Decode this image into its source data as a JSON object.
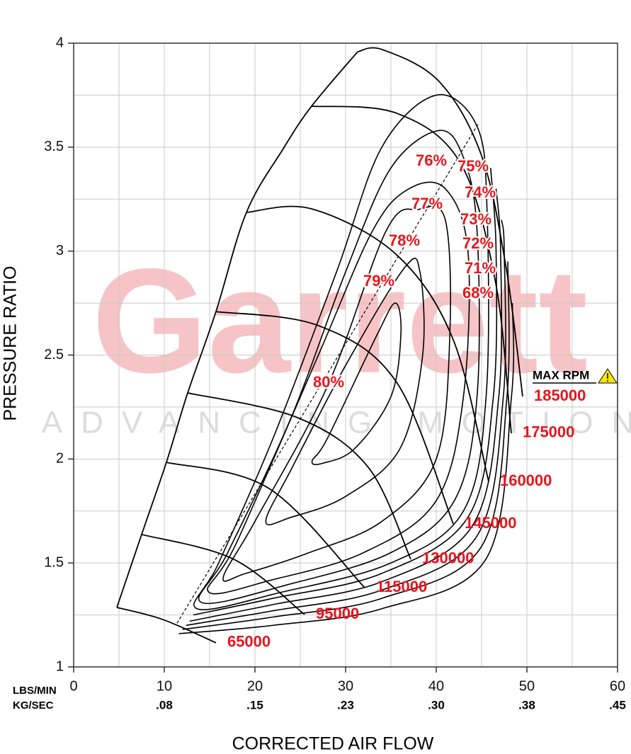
{
  "chart_data": {
    "type": "compressor_map",
    "x_label": "CORRECTED AIR FLOW",
    "y_label": "PRESSURE RATIO",
    "x_units_label": "LBS/MIN",
    "x2_units_label": "KG/SEC",
    "xlim": [
      0,
      60
    ],
    "ylim": [
      1,
      4
    ],
    "xticks": [
      0,
      10,
      20,
      30,
      40,
      50,
      60
    ],
    "x2ticks": [
      {
        "value": 10,
        "label": ".08"
      },
      {
        "value": 20,
        "label": ".15"
      },
      {
        "value": 30,
        "label": ".23"
      },
      {
        "value": 40,
        "label": ".30"
      },
      {
        "value": 50,
        "label": ".38"
      },
      {
        "value": 60,
        "label": ".45"
      }
    ],
    "yticks": [
      1,
      1.5,
      2,
      2.5,
      3,
      3.5,
      4
    ],
    "xgrid": [
      0,
      5,
      10,
      15,
      20,
      25,
      30,
      35,
      40,
      45,
      50,
      55,
      60
    ],
    "ygrid": [
      1,
      1.25,
      1.5,
      1.75,
      2,
      2.25,
      2.5,
      2.75,
      3,
      3.25,
      3.5,
      3.75,
      4
    ],
    "label_color": "#e8141b",
    "line_color": "#000000",
    "speed_lines": [
      {
        "name": "65000",
        "x": [
          4.77,
          9.84,
          15.7
        ],
        "y": [
          1.286,
          1.228,
          1.116
        ]
      },
      {
        "name": "95000",
        "x": [
          7.5,
          17.66,
          25.47
        ],
        "y": [
          1.637,
          1.518,
          1.252
        ]
      },
      {
        "name": "115000",
        "x": [
          10.23,
          21.56,
          32.11
        ],
        "y": [
          1.984,
          1.858,
          1.381
        ]
      },
      {
        "name": "130000",
        "x": [
          12.58,
          24.69,
          32.5,
          37.19
        ],
        "y": [
          2.318,
          2.199,
          1.96,
          1.518
        ]
      },
      {
        "name": "145000",
        "x": [
          15.7,
          27.03,
          35.63,
          41.88
        ],
        "y": [
          2.709,
          2.641,
          2.369,
          1.688
        ]
      },
      {
        "name": "160000",
        "x": [
          19.06,
          26.25,
          35.63,
          41.88,
          45.78
        ],
        "y": [
          3.186,
          3.203,
          2.982,
          2.573,
          1.892
        ]
      },
      {
        "name": "175000",
        "x": [
          26.25,
          35.63,
          42.66,
          46.56,
          48.28
        ],
        "y": [
          3.697,
          3.663,
          3.424,
          2.846,
          2.124
        ]
      },
      {
        "name": "185000",
        "x": [
          31.33,
          34.06,
          40.31,
          45.0,
          47.73,
          49.53
        ],
        "y": [
          3.959,
          3.969,
          3.816,
          3.459,
          2.914,
          2.301
        ]
      }
    ],
    "efficiency_islands": [
      {
        "name": "80%",
        "closed": true,
        "x": [
          26.3,
          28,
          33.5,
          35.5,
          36.1,
          35,
          31,
          27.5
        ],
        "y": [
          1.99,
          2.1,
          2.6,
          2.75,
          2.6,
          2.3,
          2.05,
          1.98
        ]
      },
      {
        "name": "79%",
        "closed": true,
        "x": [
          21.2,
          24,
          30,
          36.5,
          38.2,
          38.5,
          36,
          30,
          24
        ],
        "y": [
          1.7,
          1.95,
          2.45,
          2.92,
          2.9,
          2.5,
          2.05,
          1.82,
          1.72
        ]
      },
      {
        "name": "78%",
        "closed": true,
        "x": [
          16.5,
          20,
          28,
          34.5,
          38,
          41,
          41.5,
          40,
          34,
          26,
          19
        ],
        "y": [
          1.43,
          1.7,
          2.35,
          3.1,
          3.2,
          3.15,
          2.6,
          2.0,
          1.7,
          1.55,
          1.45
        ]
      },
      {
        "name": "77%",
        "closed": true,
        "x": [
          14.9,
          18,
          27,
          33,
          37,
          41,
          43.5,
          43,
          40,
          32,
          22
        ],
        "y": [
          1.36,
          1.6,
          2.5,
          3.1,
          3.3,
          3.3,
          3.0,
          2.3,
          1.8,
          1.55,
          1.42
        ]
      },
      {
        "name": "76%",
        "closed": true,
        "x": [
          14.1,
          17,
          24,
          30,
          35,
          40.3,
          43,
          44.5,
          44.5,
          42,
          35,
          24
        ],
        "y": [
          1.31,
          1.55,
          2.2,
          2.9,
          3.4,
          3.58,
          3.45,
          3.1,
          2.3,
          1.8,
          1.55,
          1.4
        ]
      },
      {
        "name": "75%",
        "closed": true,
        "x": [
          13.6,
          16,
          22,
          29,
          34,
          40,
          44.5,
          45.6,
          45.5,
          43,
          35,
          23
        ],
        "y": [
          1.28,
          1.5,
          2.1,
          2.9,
          3.5,
          3.75,
          3.6,
          3.2,
          2.3,
          1.75,
          1.5,
          1.36
        ]
      },
      {
        "name": "74%",
        "closed": false,
        "x": [
          13.2,
          22,
          34,
          43.5,
          46.3,
          46.6,
          46
        ],
        "y": [
          1.25,
          1.33,
          1.45,
          1.72,
          2.3,
          3.0,
          3.4
        ]
      },
      {
        "name": "73%",
        "closed": false,
        "x": [
          12.8,
          22,
          34,
          44,
          46.9,
          47.1,
          46.6
        ],
        "y": [
          1.22,
          1.3,
          1.41,
          1.68,
          2.3,
          3.0,
          3.3
        ]
      },
      {
        "name": "72%",
        "closed": false,
        "x": [
          12.4,
          22,
          34,
          44.5,
          47.4,
          47.5,
          47.2
        ],
        "y": [
          1.2,
          1.27,
          1.37,
          1.63,
          2.3,
          3.0,
          3.15
        ]
      },
      {
        "name": "71%",
        "closed": false,
        "x": [
          12.0,
          22,
          34,
          45,
          47.8,
          47.9
        ],
        "y": [
          1.18,
          1.24,
          1.33,
          1.58,
          2.3,
          2.95
        ]
      },
      {
        "name": "68%",
        "closed": false,
        "x": [
          11.6,
          22,
          34,
          45.5,
          48.3,
          48.4
        ],
        "y": [
          1.16,
          1.2,
          1.28,
          1.52,
          2.3,
          2.75
        ]
      }
    ],
    "surge_line": {
      "x": [
        4.77,
        7.5,
        10.23,
        12.58,
        15.7,
        19.06,
        23.13,
        26.25,
        31.33
      ],
      "y": [
        1.286,
        1.637,
        1.984,
        2.318,
        2.709,
        3.186,
        3.493,
        3.697,
        3.959
      ]
    },
    "peak_efficiency_line": {
      "x": [
        11.4,
        44.6
      ],
      "y": [
        1.21,
        3.61
      ]
    },
    "max_rpm_label": "MAX RPM",
    "watermark": {
      "title": "Garrett",
      "subtitle": "ADVANCING MOTION"
    }
  }
}
